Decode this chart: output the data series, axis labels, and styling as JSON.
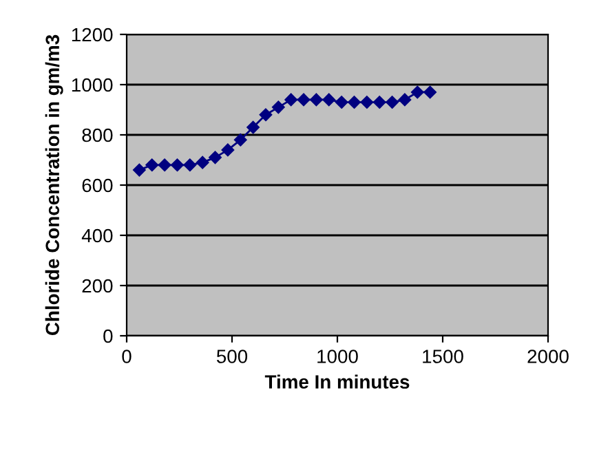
{
  "chart_data": {
    "type": "line",
    "xlabel": "Time In minutes",
    "ylabel": "Chloride Concentration in gm/m3",
    "x": [
      60,
      120,
      180,
      240,
      300,
      360,
      420,
      480,
      540,
      600,
      660,
      720,
      780,
      840,
      900,
      960,
      1020,
      1080,
      1140,
      1200,
      1260,
      1320,
      1380,
      1440
    ],
    "series": [
      {
        "color": "#000080",
        "values": [
          660,
          680,
          680,
          680,
          680,
          690,
          710,
          740,
          780,
          830,
          880,
          910,
          940,
          940,
          940,
          940,
          930,
          930,
          930,
          930,
          930,
          940,
          970,
          970
        ]
      }
    ],
    "xlim": [
      0,
      2000
    ],
    "xticks": [
      0,
      500,
      1000,
      1500,
      2000
    ],
    "ylim": [
      0,
      1200
    ],
    "yticks": [
      0,
      200,
      400,
      600,
      800,
      1000,
      1200
    ],
    "grid": "y",
    "marker": "diamond",
    "line_style": "solid",
    "legend": false
  }
}
